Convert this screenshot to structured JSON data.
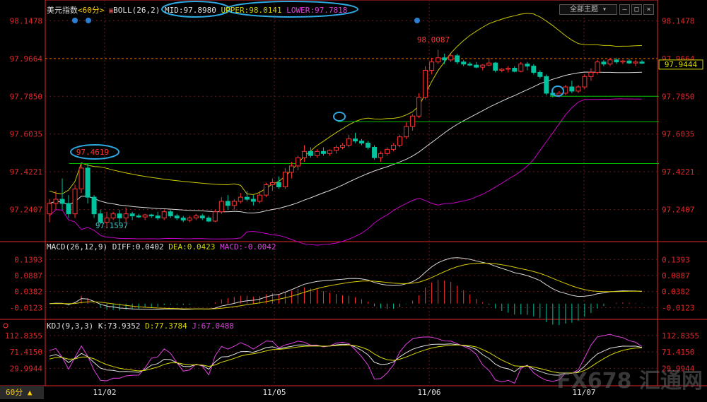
{
  "colors": {
    "up": "#ff3232",
    "down": "#00c3a0",
    "mid": "#d8d8d8",
    "upper": "#c8c800",
    "lower": "#c800c8",
    "dea": "#d8c800",
    "kline": "#e0e0e0",
    "dline": "#d8d800",
    "jline": "#e040e0",
    "hline": "#00c000",
    "annotation": "#2ea8e0",
    "grid": "#6a1a1a",
    "axis": "#e0282a"
  },
  "header": {
    "title": "美元指数",
    "period": "<60分>",
    "indicator": "BOLL(26,2)",
    "mid": "MID:97.8980",
    "upper": "UPPER:98.0141",
    "lower": "LOWER:97.7818",
    "theme_button": "全部主题"
  },
  "macd": {
    "title": "MACD(26,12,9)",
    "diff": "DIFF:0.0402",
    "dea": "DEA:0.0423",
    "macd": "MACD:-0.0042"
  },
  "kdj": {
    "title": "KDJ(9,3,3)",
    "k": "K:73.9352",
    "d": "D:77.3784",
    "j": "J:67.0488"
  },
  "footer": {
    "period": "60分 ▲"
  },
  "watermark": {
    "text": "FX678 汇通网"
  },
  "chart_data": [
    {
      "type": "candlestick",
      "title": "美元指数 <60分> BOLL(26,2)",
      "y_ticks": [
        "98.1478",
        "97.9664",
        "97.7850",
        "97.6035",
        "97.4221",
        "97.2407"
      ],
      "ylim": [
        97.1,
        98.18
      ],
      "x_ticks": [
        "11/02",
        "11/05",
        "11/06",
        "11/07"
      ],
      "current_price": "97.9444",
      "current_line": 97.9664,
      "annotations": {
        "high": "98.0087",
        "mid_high": "97.4619",
        "low": "97.1597"
      },
      "support_lines": [
        97.785,
        97.6627,
        97.4619
      ],
      "candles": [
        [
          97.22,
          97.29,
          97.18,
          97.27
        ],
        [
          97.27,
          97.33,
          97.24,
          97.29
        ],
        [
          97.29,
          97.39,
          97.24,
          97.27
        ],
        [
          97.27,
          97.31,
          97.2,
          97.22
        ],
        [
          97.22,
          97.36,
          97.2,
          97.34
        ],
        [
          97.34,
          97.46,
          97.32,
          97.44
        ],
        [
          97.44,
          97.46,
          97.27,
          97.3
        ],
        [
          97.3,
          97.31,
          97.2,
          97.22
        ],
        [
          97.22,
          97.24,
          97.17,
          97.18
        ],
        [
          97.18,
          97.23,
          97.15,
          97.2
        ],
        [
          97.2,
          97.23,
          97.19,
          97.22
        ],
        [
          97.22,
          97.24,
          97.17,
          97.2
        ],
        [
          97.2,
          97.25,
          97.18,
          97.22
        ],
        [
          97.22,
          97.23,
          97.19,
          97.21
        ],
        [
          97.21,
          97.22,
          97.2,
          97.205
        ],
        [
          97.205,
          97.22,
          97.19,
          97.215
        ],
        [
          97.215,
          97.22,
          97.2,
          97.21
        ],
        [
          97.21,
          97.23,
          97.19,
          97.2
        ],
        [
          97.2,
          97.24,
          97.19,
          97.23
        ],
        [
          97.23,
          97.24,
          97.2,
          97.21
        ],
        [
          97.21,
          97.22,
          97.19,
          97.2
        ],
        [
          97.2,
          97.21,
          97.18,
          97.19
        ],
        [
          97.19,
          97.21,
          97.18,
          97.2
        ],
        [
          97.2,
          97.22,
          97.19,
          97.21
        ],
        [
          97.21,
          97.22,
          97.19,
          97.2
        ],
        [
          97.2,
          97.21,
          97.18,
          97.185
        ],
        [
          97.185,
          97.24,
          97.18,
          97.23
        ],
        [
          97.23,
          97.3,
          97.22,
          97.28
        ],
        [
          97.28,
          97.31,
          97.24,
          97.26
        ],
        [
          97.26,
          97.29,
          97.24,
          97.28
        ],
        [
          97.28,
          97.32,
          97.27,
          97.3
        ],
        [
          97.3,
          97.33,
          97.28,
          97.29
        ],
        [
          97.29,
          97.31,
          97.26,
          97.28
        ],
        [
          97.28,
          97.33,
          97.27,
          97.31
        ],
        [
          97.31,
          97.37,
          97.3,
          97.36
        ],
        [
          97.36,
          97.39,
          97.33,
          97.37
        ],
        [
          97.37,
          97.4,
          97.34,
          97.35
        ],
        [
          97.35,
          97.44,
          97.34,
          97.42
        ],
        [
          97.42,
          97.47,
          97.39,
          97.45
        ],
        [
          97.45,
          97.5,
          97.43,
          97.49
        ],
        [
          97.49,
          97.55,
          97.47,
          97.52
        ],
        [
          97.52,
          97.54,
          97.49,
          97.5
        ],
        [
          97.5,
          97.53,
          97.49,
          97.52
        ],
        [
          97.52,
          97.54,
          97.5,
          97.51
        ],
        [
          97.51,
          97.53,
          97.5,
          97.525
        ],
        [
          97.525,
          97.55,
          97.51,
          97.54
        ],
        [
          97.54,
          97.56,
          97.53,
          97.55
        ],
        [
          97.55,
          97.6,
          97.54,
          97.58
        ],
        [
          97.58,
          97.61,
          97.56,
          97.57
        ],
        [
          97.57,
          97.58,
          97.55,
          97.56
        ],
        [
          97.56,
          97.57,
          97.53,
          97.54
        ],
        [
          97.54,
          97.55,
          97.48,
          97.49
        ],
        [
          97.49,
          97.52,
          97.47,
          97.51
        ],
        [
          97.51,
          97.54,
          97.5,
          97.53
        ],
        [
          97.53,
          97.56,
          97.52,
          97.55
        ],
        [
          97.55,
          97.6,
          97.54,
          97.59
        ],
        [
          97.59,
          97.66,
          97.58,
          97.64
        ],
        [
          97.64,
          97.7,
          97.62,
          97.69
        ],
        [
          97.69,
          97.8,
          97.68,
          97.78
        ],
        [
          97.78,
          97.93,
          97.77,
          97.91
        ],
        [
          97.91,
          97.97,
          97.89,
          97.95
        ],
        [
          97.95,
          98.0087,
          97.94,
          97.97
        ],
        [
          97.97,
          97.99,
          97.94,
          97.96
        ],
        [
          97.96,
          97.99,
          97.95,
          97.98
        ],
        [
          97.98,
          97.99,
          97.94,
          97.95
        ],
        [
          97.95,
          97.96,
          97.93,
          97.94
        ],
        [
          97.94,
          97.95,
          97.93,
          97.935
        ],
        [
          97.935,
          97.95,
          97.92,
          97.925
        ],
        [
          97.925,
          97.94,
          97.91,
          97.935
        ],
        [
          97.935,
          97.97,
          97.93,
          97.945
        ],
        [
          97.945,
          97.95,
          97.9,
          97.91
        ],
        [
          97.91,
          97.92,
          97.9,
          97.915
        ],
        [
          97.915,
          97.93,
          97.9,
          97.92
        ],
        [
          97.92,
          97.93,
          97.9,
          97.905
        ],
        [
          97.905,
          97.95,
          97.9,
          97.94
        ],
        [
          97.94,
          97.95,
          97.91,
          97.93
        ],
        [
          97.93,
          97.94,
          97.89,
          97.9
        ],
        [
          97.9,
          97.91,
          97.87,
          97.88
        ],
        [
          97.88,
          97.89,
          97.79,
          97.8
        ],
        [
          97.8,
          97.82,
          97.78,
          97.79
        ],
        [
          97.79,
          97.81,
          97.78,
          97.8
        ],
        [
          97.8,
          97.84,
          97.79,
          97.83
        ],
        [
          97.83,
          97.86,
          97.8,
          97.81
        ],
        [
          97.81,
          97.84,
          97.8,
          97.83
        ],
        [
          97.83,
          97.89,
          97.82,
          97.88
        ],
        [
          97.88,
          97.92,
          97.86,
          97.9
        ],
        [
          97.9,
          97.96,
          97.89,
          97.95
        ],
        [
          97.95,
          97.96,
          97.93,
          97.94
        ],
        [
          97.94,
          97.97,
          97.93,
          97.96
        ],
        [
          97.96,
          97.97,
          97.94,
          97.95
        ],
        [
          97.95,
          97.96,
          97.94,
          97.955
        ],
        [
          97.955,
          97.965,
          97.94,
          97.945
        ],
        [
          97.945,
          97.96,
          97.93,
          97.95
        ],
        [
          97.95,
          97.96,
          97.94,
          97.944
        ]
      ]
    },
    {
      "type": "bar",
      "title": "MACD(26,12,9)",
      "y_ticks": [
        "0.1393",
        "0.0887",
        "0.0382",
        "-0.0123"
      ],
      "ylim": [
        -0.045,
        0.16
      ]
    },
    {
      "type": "line",
      "title": "KDJ(9,3,3)",
      "y_ticks": [
        "112.8355",
        "71.4150",
        "29.9944"
      ],
      "ylim": [
        -12,
        125
      ]
    }
  ]
}
